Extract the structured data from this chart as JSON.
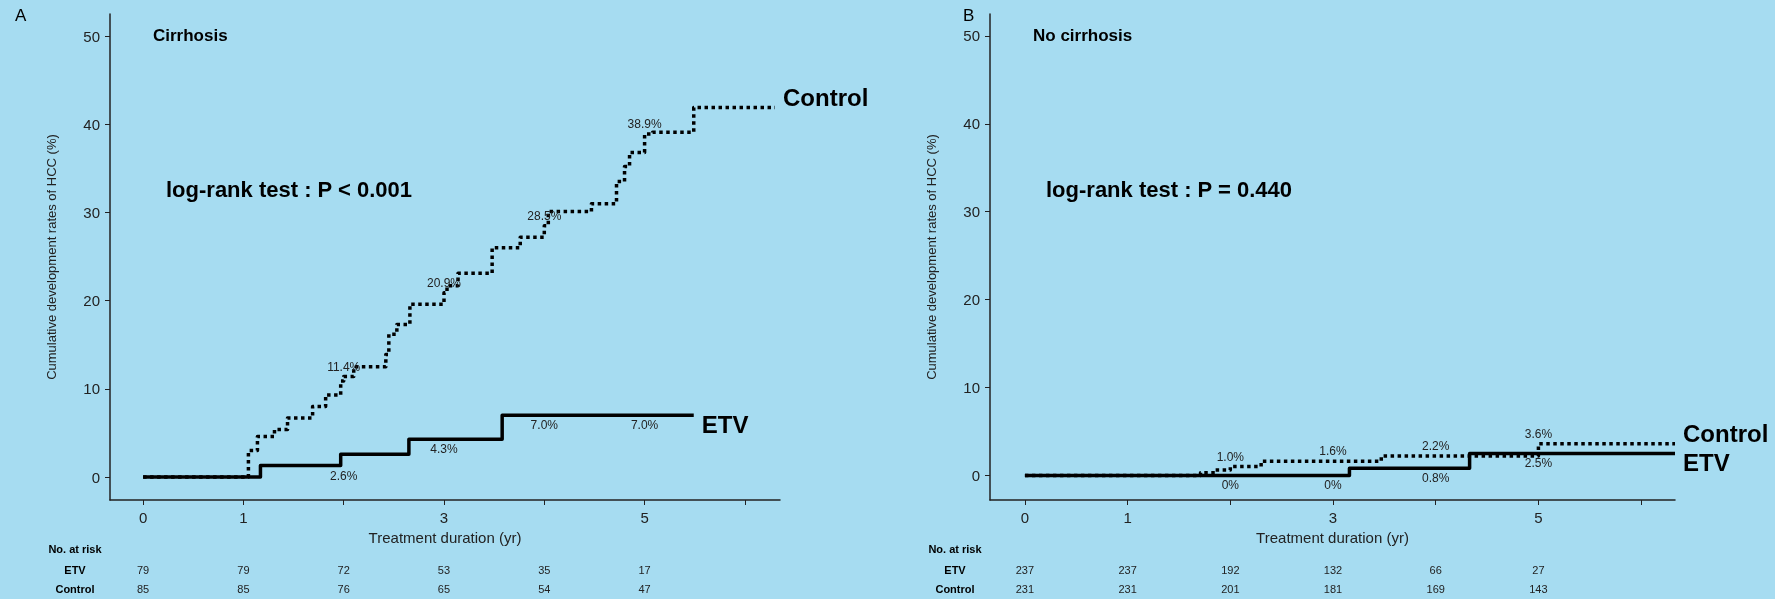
{
  "chart_data": [
    {
      "type": "step",
      "title": "Cirrhosis",
      "subtitle": "A",
      "xlabel": "Treatment duration (yr)",
      "ylabel": "Cumulative development rates of HCC (%)",
      "marker": "none",
      "xlim": [
        -0.33,
        6.35
      ],
      "ylim": [
        -2.6,
        52.5
      ],
      "xticks": [
        0,
        1,
        {
          "value": 2,
          "label": null
        },
        3,
        {
          "value": 4,
          "label": null
        },
        5,
        {
          "value": 6,
          "label": null
        }
      ],
      "yticks": [
        0,
        10,
        20,
        30,
        40,
        50
      ],
      "series": [
        {
          "name": "Control",
          "color": "#000000",
          "line_style": "dotted",
          "x": [
            0,
            1.0,
            1.05,
            1.14,
            1.31,
            1.44,
            1.69,
            1.82,
            1.97,
            2.0,
            2.1,
            2.42,
            2.45,
            2.53,
            2.66,
            3.0,
            3.03,
            3.14,
            3.48,
            3.76,
            4.0,
            4.04,
            4.47,
            4.72,
            4.8,
            4.85,
            5.0,
            5.08,
            5.49,
            6.3
          ],
          "values": [
            0,
            0,
            3,
            4.6,
            5.4,
            6.7,
            8.0,
            9.3,
            10.9,
            11.4,
            12.5,
            13.9,
            16.2,
            17.3,
            19.6,
            20.9,
            21.7,
            23.1,
            26.0,
            27.2,
            28.5,
            30.1,
            31.0,
            33.5,
            35.2,
            36.8,
            38.9,
            39.1,
            41.9,
            41.9
          ],
          "value_labels": [
            null,
            null,
            null,
            null,
            null,
            null,
            null,
            null,
            null,
            "11.4%",
            null,
            null,
            null,
            null,
            null,
            "20.9%",
            null,
            null,
            null,
            null,
            "28.5%",
            null,
            null,
            null,
            null,
            null,
            "38.9%",
            null,
            null,
            null
          ]
        },
        {
          "name": "ETV",
          "color": "#000000",
          "line_style": "solid",
          "x": [
            0,
            1.17,
            1.97,
            2,
            2.65,
            3,
            3.58,
            4,
            5,
            5.49
          ],
          "values": [
            0,
            1.3,
            2.6,
            2.6,
            4.3,
            4.3,
            7.0,
            7.0,
            7.0,
            7.0
          ],
          "value_labels": [
            null,
            null,
            null,
            "2.6%",
            null,
            "4.3%",
            null,
            "7.0%",
            "7.0%",
            null
          ]
        }
      ],
      "annotations": [
        "log-rank test : P < 0.001",
        "No. at risk",
        "ETV",
        "79",
        "79",
        "72",
        "53",
        "35",
        "17",
        "Control",
        "85",
        "85",
        "76",
        "65",
        "54",
        "47"
      ]
    },
    {
      "type": "step",
      "title": "No cirrhosis",
      "subtitle": "B",
      "xlabel": "Treatment duration (yr)",
      "ylabel": "Cumulative development rates of HCC (%)",
      "marker": "none",
      "xlim": [
        -0.34,
        6.33
      ],
      "ylim": [
        -2.8,
        52.5
      ],
      "xticks": [
        0,
        1,
        {
          "value": 2,
          "label": null
        },
        3,
        {
          "value": 4,
          "label": null
        },
        5,
        {
          "value": 6,
          "label": null
        }
      ],
      "yticks": [
        0,
        10,
        20,
        30,
        40,
        50
      ],
      "series": [
        {
          "name": "Control",
          "color": "#000000",
          "line_style": "dotted",
          "x": [
            0,
            1.71,
            1.85,
            2.0,
            2.3,
            3.0,
            3.47,
            4.0,
            5.0,
            6.33
          ],
          "values": [
            0,
            0.3,
            0.6,
            1.0,
            1.6,
            1.6,
            2.2,
            2.2,
            3.6,
            3.6
          ],
          "value_labels": [
            null,
            null,
            null,
            "1.0%",
            null,
            "1.6%",
            null,
            "2.2%",
            "3.6%",
            null
          ]
        },
        {
          "name": "ETV",
          "color": "#000000",
          "line_style": "solid",
          "x": [
            0,
            2,
            3,
            3.16,
            4,
            4.33,
            5,
            6.33
          ],
          "values": [
            0,
            0,
            0,
            0.8,
            0.8,
            2.5,
            2.5,
            2.5
          ],
          "value_labels": [
            null,
            "0%",
            "0%",
            null,
            "0.8%",
            null,
            "2.5%",
            null
          ]
        }
      ],
      "annotations": [
        "log-rank test : P = 0.440",
        "No. at risk",
        "ETV",
        "237",
        "237",
        "192",
        "132",
        "66",
        "27",
        "Control",
        "231",
        "231",
        "201",
        "181",
        "169",
        "143"
      ]
    }
  ]
}
